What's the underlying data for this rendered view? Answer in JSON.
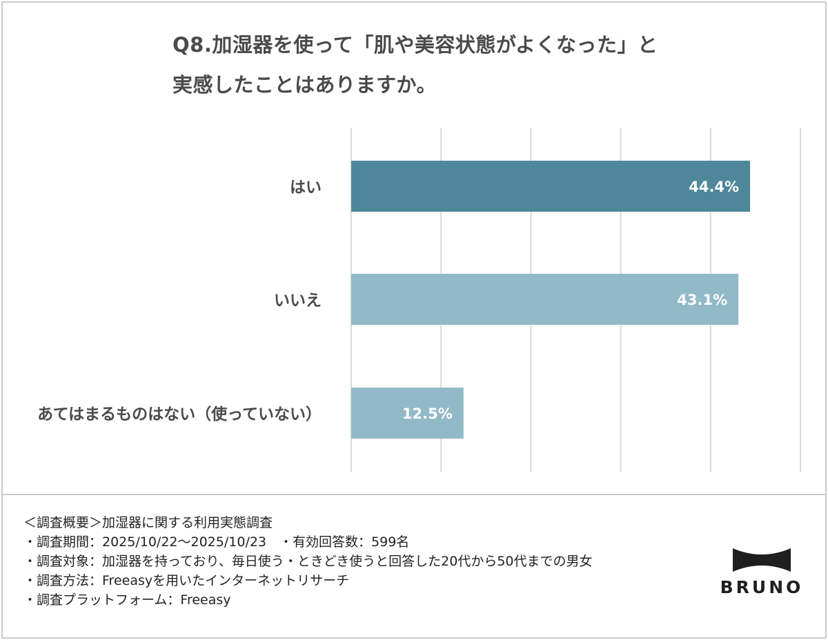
{
  "title": {
    "line1": "Q8.加湿器を使って「肌や美容状態がよくなった」と",
    "line2": "実感したことはありますか。"
  },
  "chart_data": {
    "type": "bar",
    "orientation": "horizontal",
    "categories": [
      "はい",
      "いいえ",
      "あてはまるものはない（使っていない）"
    ],
    "values": [
      44.4,
      43.1,
      12.5
    ],
    "value_labels": [
      "44.4%",
      "43.1%",
      "12.5%"
    ],
    "xlim": [
      0,
      50
    ],
    "grid": true,
    "bar_colors": [
      "#4e879a",
      "#92b9c8",
      "#92b9c8"
    ],
    "label_color": "#ffffff"
  },
  "notes": {
    "line1": "＜調査概要＞加湿器に関する利用実態調査",
    "line2": "・調査期間：2025/10/22～2025/10/23　・有効回答数：599名",
    "line3": "・調査対象：加湿器を持っており、毎日使う・ときどき使うと回答した20代から50代までの男女",
    "line4": "・調査方法：Freeasyを用いたインターネットリサーチ",
    "line5": "・調査プラットフォーム：Freeasy"
  },
  "logo": {
    "brand": "BRUNO",
    "icon": "bruno-bowtie-logo-icon"
  }
}
